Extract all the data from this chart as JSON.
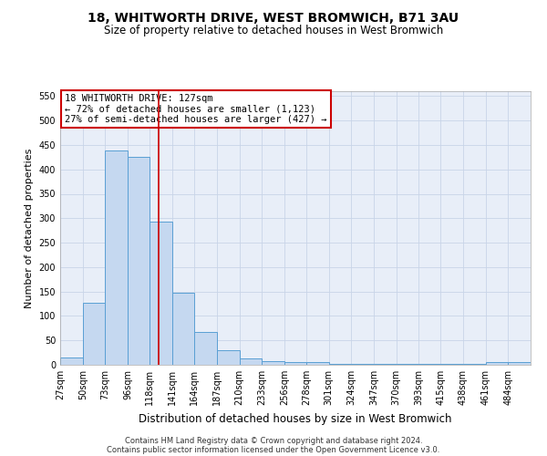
{
  "title": "18, WHITWORTH DRIVE, WEST BROMWICH, B71 3AU",
  "subtitle": "Size of property relative to detached houses in West Bromwich",
  "xlabel": "Distribution of detached houses by size in West Bromwich",
  "ylabel": "Number of detached properties",
  "bin_labels": [
    "27sqm",
    "50sqm",
    "73sqm",
    "96sqm",
    "118sqm",
    "141sqm",
    "164sqm",
    "187sqm",
    "210sqm",
    "233sqm",
    "256sqm",
    "278sqm",
    "301sqm",
    "324sqm",
    "347sqm",
    "370sqm",
    "393sqm",
    "415sqm",
    "438sqm",
    "461sqm",
    "484sqm"
  ],
  "bin_edges": [
    27,
    50,
    73,
    96,
    118,
    141,
    164,
    187,
    210,
    233,
    256,
    278,
    301,
    324,
    347,
    370,
    393,
    415,
    438,
    461,
    484,
    507
  ],
  "bar_heights": [
    15,
    127,
    438,
    425,
    293,
    148,
    68,
    29,
    13,
    8,
    5,
    5,
    1,
    1,
    1,
    1,
    1,
    1,
    1,
    5,
    5
  ],
  "bar_color": "#c5d8f0",
  "bar_edgecolor": "#5a9fd4",
  "bar_linewidth": 0.7,
  "vline_x": 127,
  "vline_color": "#cc0000",
  "vline_linewidth": 1.2,
  "ylim": [
    0,
    560
  ],
  "yticks": [
    0,
    50,
    100,
    150,
    200,
    250,
    300,
    350,
    400,
    450,
    500,
    550
  ],
  "grid_color": "#c8d4e8",
  "background_color": "#e8eef8",
  "annotation_text": "18 WHITWORTH DRIVE: 127sqm\n← 72% of detached houses are smaller (1,123)\n27% of semi-detached houses are larger (427) →",
  "annotation_box_edgecolor": "#cc0000",
  "annotation_box_facecolor": "#ffffff",
  "footer_line1": "Contains HM Land Registry data © Crown copyright and database right 2024.",
  "footer_line2": "Contains public sector information licensed under the Open Government Licence v3.0.",
  "title_fontsize": 10,
  "subtitle_fontsize": 8.5,
  "xlabel_fontsize": 8.5,
  "ylabel_fontsize": 8,
  "tick_fontsize": 7,
  "annot_fontsize": 7.5,
  "footer_fontsize": 6
}
